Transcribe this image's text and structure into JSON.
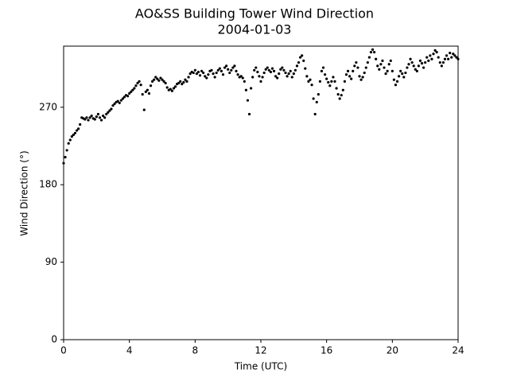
{
  "chart_data": {
    "type": "scatter",
    "title": "AO&SS Building Tower Wind Direction",
    "subtitle": "2004-01-03",
    "x_label": "Time (UTC)",
    "y_label": "Wind Direction (°)",
    "xlim": [
      0,
      24
    ],
    "xticks": [
      0,
      4,
      8,
      12,
      16,
      20,
      24
    ],
    "ylim": [
      0,
      341
    ],
    "yticks": [
      0,
      90,
      180,
      270
    ],
    "series": [
      {
        "name": "Wind Direction",
        "color": "#000000",
        "x": [
          0,
          0.1,
          0.2,
          0.3,
          0.4,
          0.5,
          0.6,
          0.7,
          0.8,
          0.9,
          1,
          1.1,
          1.2,
          1.3,
          1.4,
          1.5,
          1.6,
          1.7,
          1.8,
          1.9,
          2,
          2.1,
          2.2,
          2.3,
          2.4,
          2.5,
          2.6,
          2.7,
          2.8,
          2.9,
          3,
          3.1,
          3.2,
          3.3,
          3.4,
          3.5,
          3.6,
          3.7,
          3.8,
          3.9,
          4,
          4.1,
          4.2,
          4.3,
          4.4,
          4.5,
          4.6,
          4.7,
          4.8,
          4.9,
          5,
          5.1,
          5.2,
          5.3,
          5.4,
          5.5,
          5.6,
          5.7,
          5.8,
          5.9,
          6,
          6.1,
          6.2,
          6.3,
          6.4,
          6.5,
          6.6,
          6.7,
          6.8,
          6.9,
          7,
          7.1,
          7.2,
          7.3,
          7.4,
          7.5,
          7.6,
          7.7,
          7.8,
          7.9,
          8,
          8.1,
          8.2,
          8.3,
          8.4,
          8.5,
          8.6,
          8.7,
          8.8,
          8.9,
          9,
          9.1,
          9.2,
          9.3,
          9.4,
          9.5,
          9.6,
          9.7,
          9.8,
          9.9,
          10,
          10.1,
          10.2,
          10.3,
          10.4,
          10.5,
          10.6,
          10.7,
          10.8,
          10.9,
          11,
          11.1,
          11.2,
          11.3,
          11.4,
          11.5,
          11.6,
          11.7,
          11.8,
          11.9,
          12,
          12.1,
          12.2,
          12.3,
          12.4,
          12.5,
          12.6,
          12.7,
          12.8,
          12.9,
          13,
          13.1,
          13.2,
          13.3,
          13.4,
          13.5,
          13.6,
          13.7,
          13.8,
          13.9,
          14,
          14.1,
          14.2,
          14.3,
          14.4,
          14.5,
          14.6,
          14.7,
          14.8,
          14.9,
          15,
          15.1,
          15.2,
          15.3,
          15.4,
          15.5,
          15.6,
          15.7,
          15.8,
          15.9,
          16,
          16.1,
          16.2,
          16.3,
          16.4,
          16.5,
          16.6,
          16.7,
          16.8,
          16.9,
          17,
          17.1,
          17.2,
          17.3,
          17.4,
          17.5,
          17.6,
          17.7,
          17.8,
          17.9,
          18,
          18.1,
          18.2,
          18.3,
          18.4,
          18.5,
          18.6,
          18.7,
          18.8,
          18.9,
          19,
          19.1,
          19.2,
          19.3,
          19.4,
          19.5,
          19.6,
          19.7,
          19.8,
          19.9,
          20,
          20.1,
          20.2,
          20.3,
          20.4,
          20.5,
          20.6,
          20.7,
          20.8,
          20.9,
          21,
          21.1,
          21.2,
          21.3,
          21.4,
          21.5,
          21.6,
          21.7,
          21.8,
          21.9,
          22,
          22.1,
          22.2,
          22.3,
          22.4,
          22.5,
          22.6,
          22.7,
          22.8,
          22.9,
          23,
          23.1,
          23.2,
          23.3,
          23.4,
          23.5,
          23.6,
          23.7,
          23.8,
          23.9,
          24
        ],
        "values": [
          205,
          212,
          220,
          228,
          232,
          236,
          238,
          240,
          243,
          245,
          250,
          258,
          257,
          256,
          258,
          255,
          258,
          260,
          257,
          256,
          259,
          262,
          258,
          255,
          260,
          258,
          262,
          264,
          266,
          268,
          272,
          274,
          276,
          277,
          275,
          278,
          280,
          282,
          284,
          283,
          286,
          288,
          290,
          292,
          295,
          298,
          300,
          296,
          285,
          267,
          288,
          290,
          286,
          295,
          300,
          302,
          305,
          303,
          301,
          304,
          302,
          300,
          298,
          293,
          290,
          291,
          289,
          292,
          294,
          297,
          298,
          300,
          297,
          299,
          302,
          300,
          305,
          309,
          311,
          310,
          313,
          309,
          311,
          307,
          312,
          310,
          306,
          304,
          308,
          312,
          313,
          309,
          305,
          310,
          313,
          315,
          312,
          308,
          316,
          318,
          314,
          310,
          313,
          316,
          318,
          312,
          308,
          305,
          306,
          304,
          300,
          290,
          278,
          262,
          292,
          305,
          313,
          316,
          311,
          306,
          300,
          305,
          310,
          314,
          316,
          313,
          311,
          315,
          312,
          306,
          304,
          309,
          314,
          316,
          313,
          310,
          306,
          309,
          312,
          305,
          309,
          313,
          318,
          322,
          328,
          330,
          324,
          315,
          306,
          300,
          302,
          296,
          280,
          262,
          276,
          285,
          300,
          312,
          316,
          308,
          303,
          299,
          295,
          300,
          305,
          300,
          292,
          285,
          280,
          284,
          290,
          300,
          308,
          312,
          306,
          303,
          312,
          318,
          322,
          316,
          306,
          302,
          305,
          310,
          316,
          322,
          328,
          334,
          337,
          334,
          326,
          318,
          314,
          320,
          324,
          316,
          309,
          312,
          320,
          324,
          312,
          302,
          296,
          300,
          306,
          312,
          309,
          305,
          310,
          316,
          320,
          326,
          322,
          318,
          314,
          312,
          318,
          324,
          321,
          316,
          322,
          328,
          324,
          330,
          326,
          332,
          336,
          334,
          328,
          322,
          318,
          322,
          326,
          330,
          326,
          333,
          328,
          332,
          330,
          328,
          326
        ]
      }
    ]
  }
}
